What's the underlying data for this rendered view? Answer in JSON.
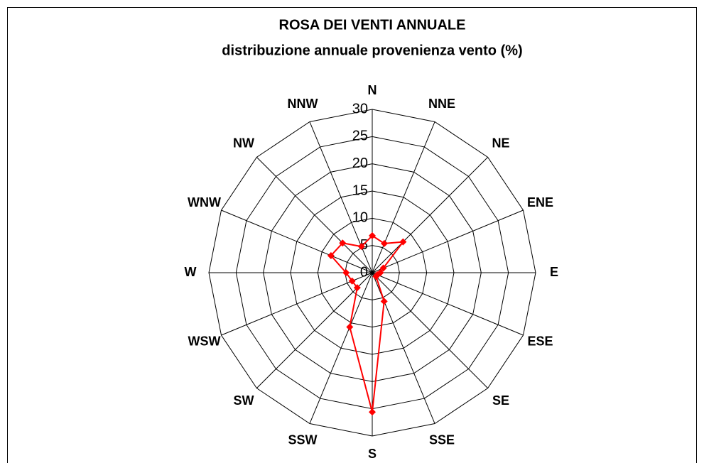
{
  "chart_data": {
    "type": "radar",
    "title": "ROSA DEI VENTI ANNUALE",
    "subtitle": "distribuzione annuale provenienza vento (%)",
    "categories": [
      "N",
      "NNE",
      "NE",
      "ENE",
      "E",
      "ESE",
      "SE",
      "SSE",
      "S",
      "SSW",
      "SW",
      "WSW",
      "W",
      "WNW",
      "NW",
      "NNW"
    ],
    "values": [
      6.8,
      5.8,
      8.0,
      2.2,
      1.5,
      1,
      1,
      5.7,
      25.6,
      10.8,
      3.9,
      4,
      4.8,
      8.2,
      7.7,
      5.2
    ],
    "color": "#ff0000",
    "ylim": [
      0,
      30
    ],
    "yticks": [
      0,
      5,
      10,
      15,
      20,
      25,
      30
    ],
    "grid": true
  }
}
